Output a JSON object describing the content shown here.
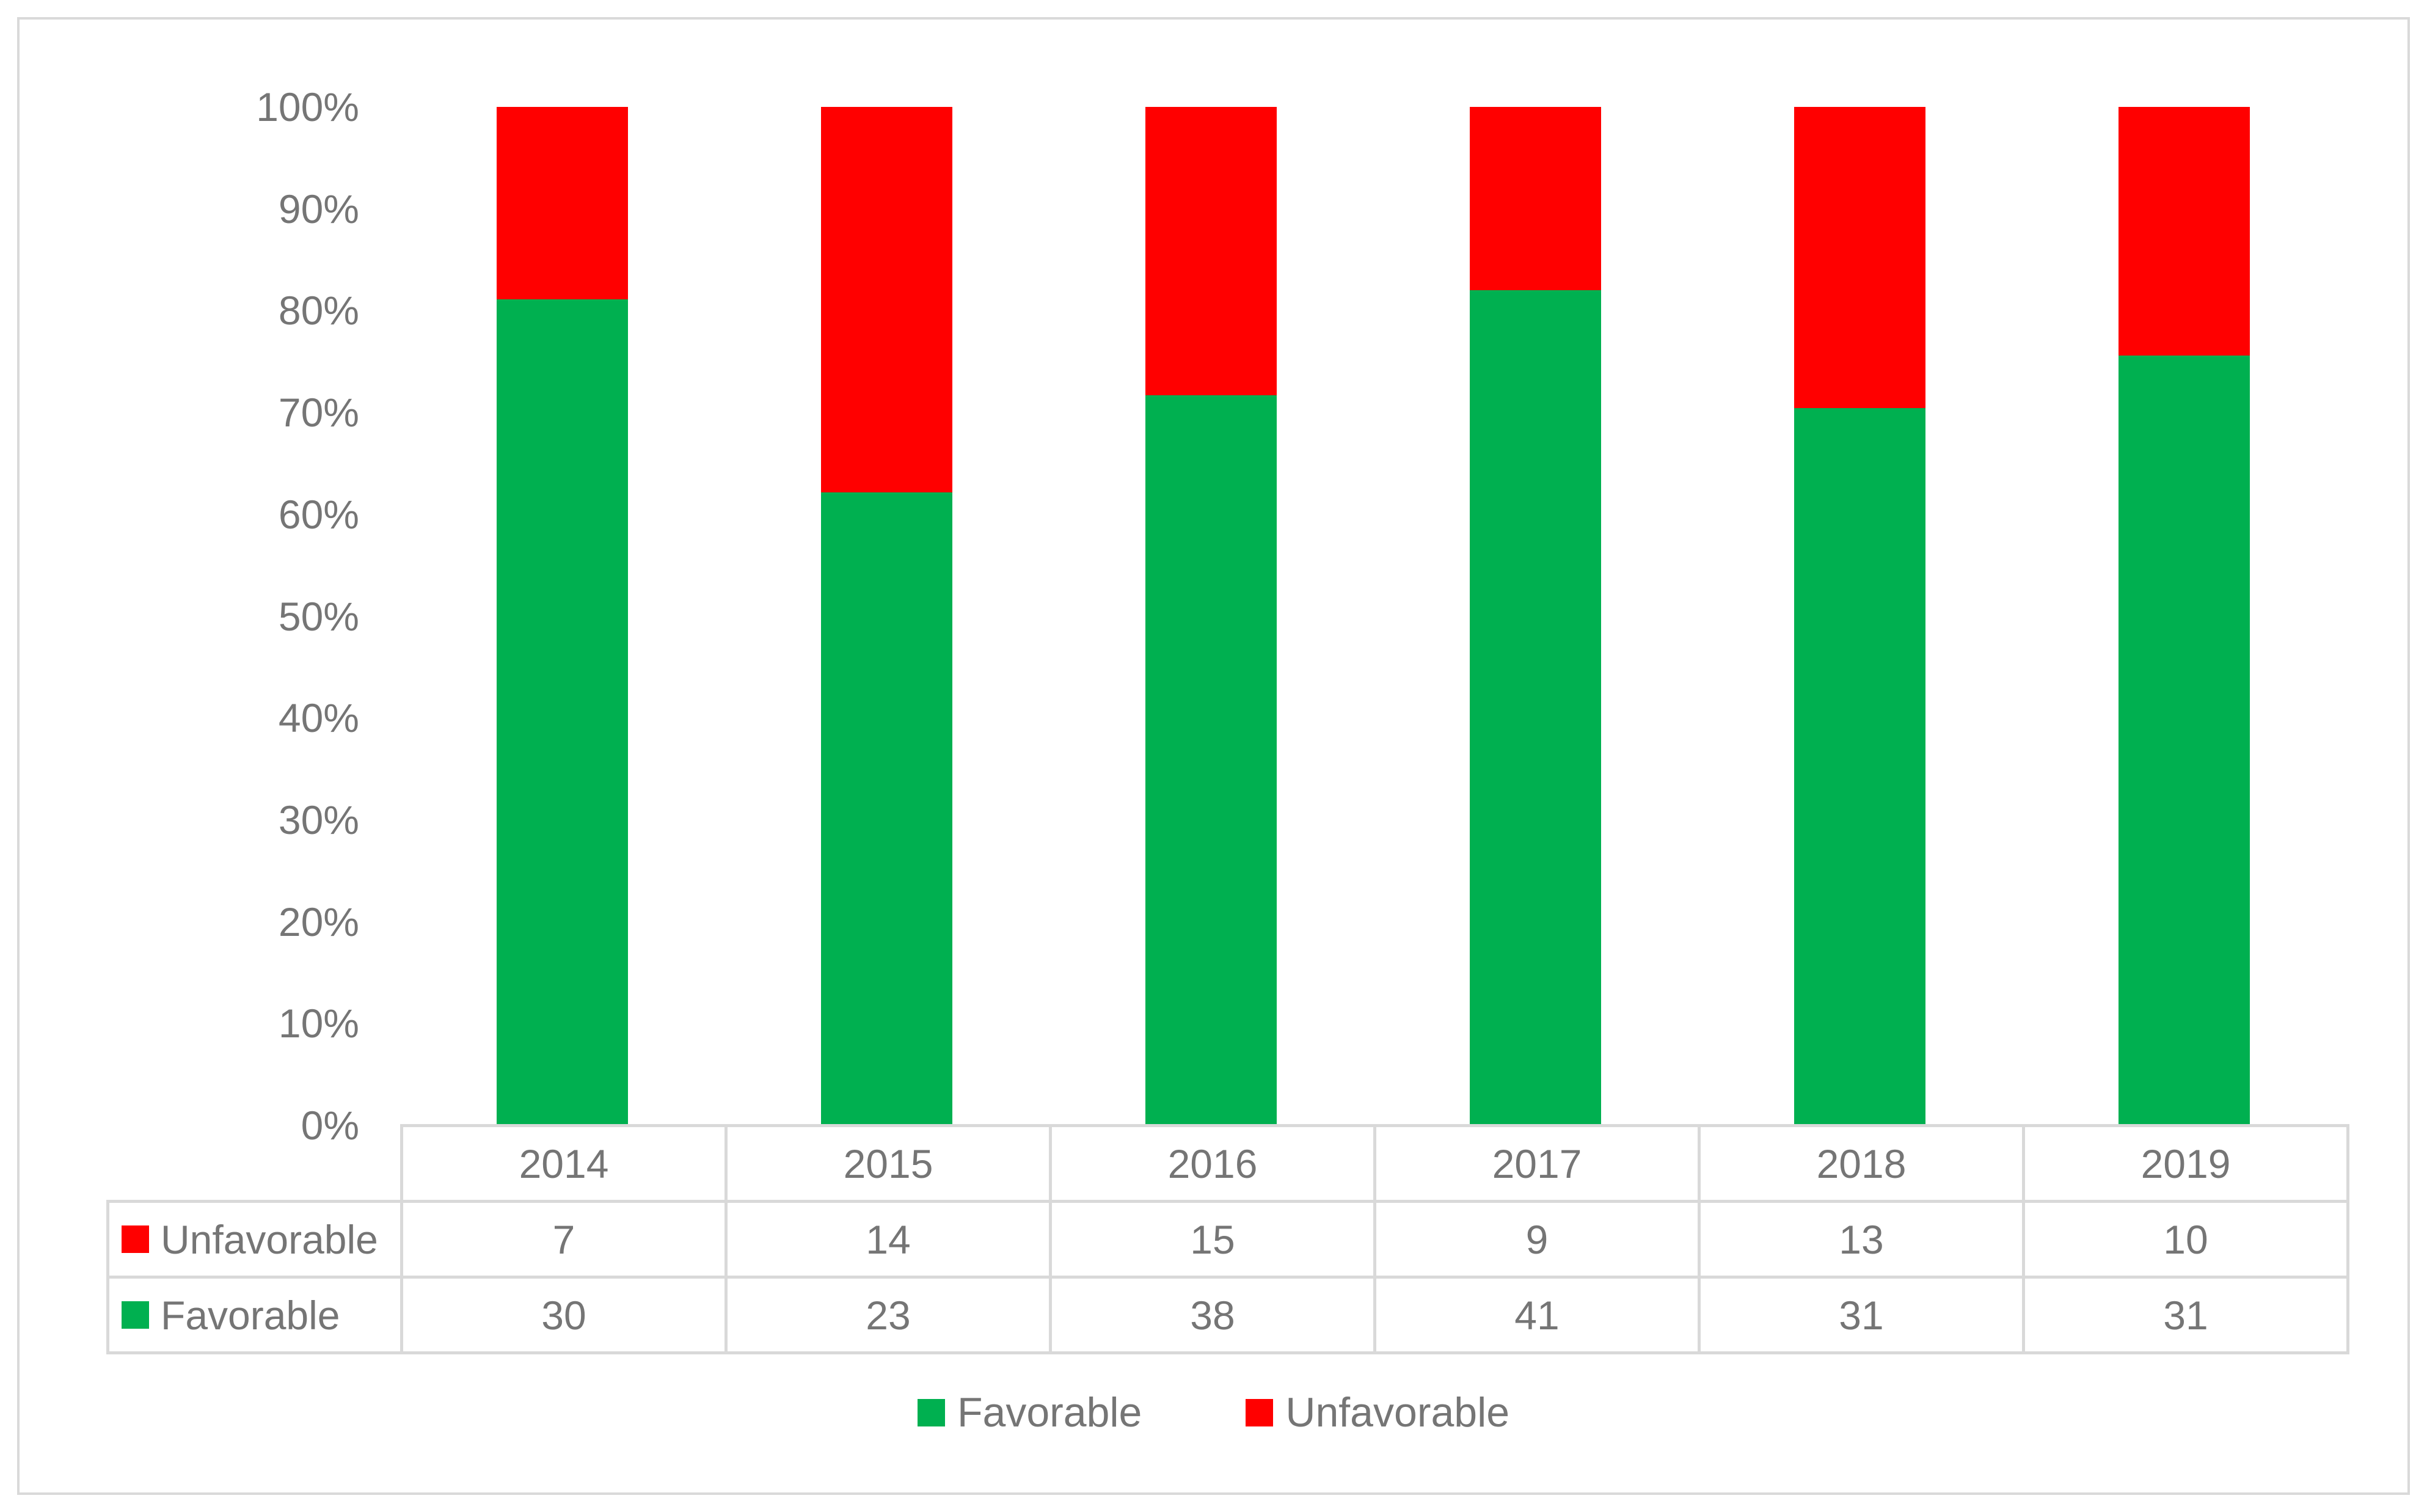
{
  "chart_data": {
    "type": "bar",
    "subtype": "stacked-100-percent",
    "title": "",
    "xlabel": "",
    "ylabel": "",
    "categories": [
      "2014",
      "2015",
      "2016",
      "2017",
      "2018",
      "2019"
    ],
    "series": [
      {
        "name": "Favorable",
        "color": "#00B050",
        "values": [
          30,
          23,
          38,
          41,
          31,
          31
        ]
      },
      {
        "name": "Unfavorable",
        "color": "#FF0000",
        "values": [
          7,
          14,
          15,
          9,
          13,
          10
        ]
      }
    ],
    "y_axis": {
      "min": 0,
      "max": 100,
      "tick_step": 10,
      "tick_labels": [
        "0%",
        "10%",
        "20%",
        "30%",
        "40%",
        "50%",
        "60%",
        "70%",
        "80%",
        "90%",
        "100%"
      ]
    },
    "gridlines": false,
    "legend": {
      "position": "bottom",
      "items": [
        {
          "label": "Favorable",
          "color": "#00B050"
        },
        {
          "label": "Unfavorable",
          "color": "#FF0000"
        }
      ]
    },
    "data_table": {
      "shown": true,
      "header_row": [
        "2014",
        "2015",
        "2016",
        "2017",
        "2018",
        "2019"
      ],
      "rows": [
        {
          "label": "Unfavorable",
          "color": "#FF0000",
          "values": [
            7,
            14,
            15,
            9,
            13,
            10
          ]
        },
        {
          "label": "Favorable",
          "color": "#00B050",
          "values": [
            30,
            23,
            38,
            41,
            31,
            31
          ]
        }
      ]
    }
  },
  "colors": {
    "favorable": "#00B050",
    "unfavorable": "#FF0000",
    "text": "#757575",
    "border": "#D9D9D9",
    "background": "#FFFFFF"
  }
}
